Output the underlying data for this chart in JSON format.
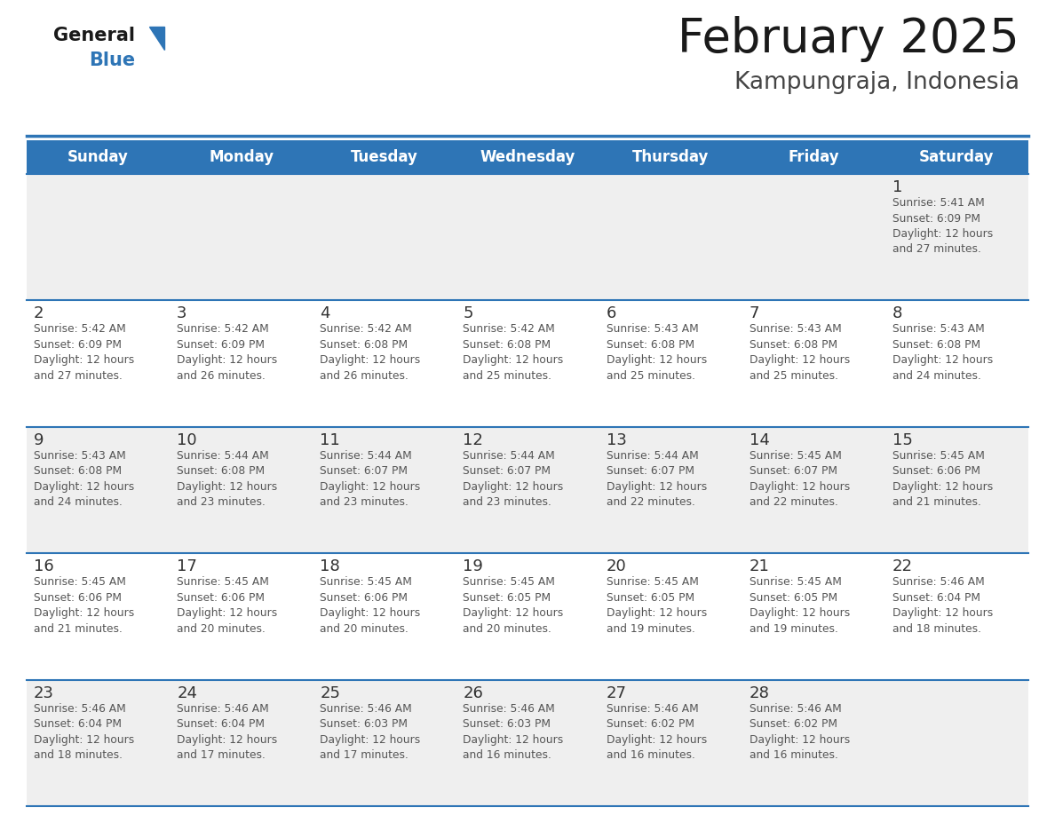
{
  "title": "February 2025",
  "subtitle": "Kampungraja, Indonesia",
  "days_of_week": [
    "Sunday",
    "Monday",
    "Tuesday",
    "Wednesday",
    "Thursday",
    "Friday",
    "Saturday"
  ],
  "header_bg": "#2E75B6",
  "header_text": "#FFFFFF",
  "row_bg_odd": "#EFEFEF",
  "row_bg_even": "#FFFFFF",
  "cell_border": "#2E75B6",
  "day_number_color": "#333333",
  "text_color": "#555555",
  "title_color": "#1a1a1a",
  "subtitle_color": "#444444",
  "calendar_data": [
    [
      null,
      null,
      null,
      null,
      null,
      null,
      {
        "day": "1",
        "sunrise": "5:41 AM",
        "sunset": "6:09 PM",
        "daylight_hrs": "12 hours",
        "daylight_min": "and 27 minutes."
      }
    ],
    [
      {
        "day": "2",
        "sunrise": "5:42 AM",
        "sunset": "6:09 PM",
        "daylight_hrs": "12 hours",
        "daylight_min": "and 27 minutes."
      },
      {
        "day": "3",
        "sunrise": "5:42 AM",
        "sunset": "6:09 PM",
        "daylight_hrs": "12 hours",
        "daylight_min": "and 26 minutes."
      },
      {
        "day": "4",
        "sunrise": "5:42 AM",
        "sunset": "6:08 PM",
        "daylight_hrs": "12 hours",
        "daylight_min": "and 26 minutes."
      },
      {
        "day": "5",
        "sunrise": "5:42 AM",
        "sunset": "6:08 PM",
        "daylight_hrs": "12 hours",
        "daylight_min": "and 25 minutes."
      },
      {
        "day": "6",
        "sunrise": "5:43 AM",
        "sunset": "6:08 PM",
        "daylight_hrs": "12 hours",
        "daylight_min": "and 25 minutes."
      },
      {
        "day": "7",
        "sunrise": "5:43 AM",
        "sunset": "6:08 PM",
        "daylight_hrs": "12 hours",
        "daylight_min": "and 25 minutes."
      },
      {
        "day": "8",
        "sunrise": "5:43 AM",
        "sunset": "6:08 PM",
        "daylight_hrs": "12 hours",
        "daylight_min": "and 24 minutes."
      }
    ],
    [
      {
        "day": "9",
        "sunrise": "5:43 AM",
        "sunset": "6:08 PM",
        "daylight_hrs": "12 hours",
        "daylight_min": "and 24 minutes."
      },
      {
        "day": "10",
        "sunrise": "5:44 AM",
        "sunset": "6:08 PM",
        "daylight_hrs": "12 hours",
        "daylight_min": "and 23 minutes."
      },
      {
        "day": "11",
        "sunrise": "5:44 AM",
        "sunset": "6:07 PM",
        "daylight_hrs": "12 hours",
        "daylight_min": "and 23 minutes."
      },
      {
        "day": "12",
        "sunrise": "5:44 AM",
        "sunset": "6:07 PM",
        "daylight_hrs": "12 hours",
        "daylight_min": "and 23 minutes."
      },
      {
        "day": "13",
        "sunrise": "5:44 AM",
        "sunset": "6:07 PM",
        "daylight_hrs": "12 hours",
        "daylight_min": "and 22 minutes."
      },
      {
        "day": "14",
        "sunrise": "5:45 AM",
        "sunset": "6:07 PM",
        "daylight_hrs": "12 hours",
        "daylight_min": "and 22 minutes."
      },
      {
        "day": "15",
        "sunrise": "5:45 AM",
        "sunset": "6:06 PM",
        "daylight_hrs": "12 hours",
        "daylight_min": "and 21 minutes."
      }
    ],
    [
      {
        "day": "16",
        "sunrise": "5:45 AM",
        "sunset": "6:06 PM",
        "daylight_hrs": "12 hours",
        "daylight_min": "and 21 minutes."
      },
      {
        "day": "17",
        "sunrise": "5:45 AM",
        "sunset": "6:06 PM",
        "daylight_hrs": "12 hours",
        "daylight_min": "and 20 minutes."
      },
      {
        "day": "18",
        "sunrise": "5:45 AM",
        "sunset": "6:06 PM",
        "daylight_hrs": "12 hours",
        "daylight_min": "and 20 minutes."
      },
      {
        "day": "19",
        "sunrise": "5:45 AM",
        "sunset": "6:05 PM",
        "daylight_hrs": "12 hours",
        "daylight_min": "and 20 minutes."
      },
      {
        "day": "20",
        "sunrise": "5:45 AM",
        "sunset": "6:05 PM",
        "daylight_hrs": "12 hours",
        "daylight_min": "and 19 minutes."
      },
      {
        "day": "21",
        "sunrise": "5:45 AM",
        "sunset": "6:05 PM",
        "daylight_hrs": "12 hours",
        "daylight_min": "and 19 minutes."
      },
      {
        "day": "22",
        "sunrise": "5:46 AM",
        "sunset": "6:04 PM",
        "daylight_hrs": "12 hours",
        "daylight_min": "and 18 minutes."
      }
    ],
    [
      {
        "day": "23",
        "sunrise": "5:46 AM",
        "sunset": "6:04 PM",
        "daylight_hrs": "12 hours",
        "daylight_min": "and 18 minutes."
      },
      {
        "day": "24",
        "sunrise": "5:46 AM",
        "sunset": "6:04 PM",
        "daylight_hrs": "12 hours",
        "daylight_min": "and 17 minutes."
      },
      {
        "day": "25",
        "sunrise": "5:46 AM",
        "sunset": "6:03 PM",
        "daylight_hrs": "12 hours",
        "daylight_min": "and 17 minutes."
      },
      {
        "day": "26",
        "sunrise": "5:46 AM",
        "sunset": "6:03 PM",
        "daylight_hrs": "12 hours",
        "daylight_min": "and 16 minutes."
      },
      {
        "day": "27",
        "sunrise": "5:46 AM",
        "sunset": "6:02 PM",
        "daylight_hrs": "12 hours",
        "daylight_min": "and 16 minutes."
      },
      {
        "day": "28",
        "sunrise": "5:46 AM",
        "sunset": "6:02 PM",
        "daylight_hrs": "12 hours",
        "daylight_min": "and 16 minutes."
      },
      null
    ]
  ]
}
